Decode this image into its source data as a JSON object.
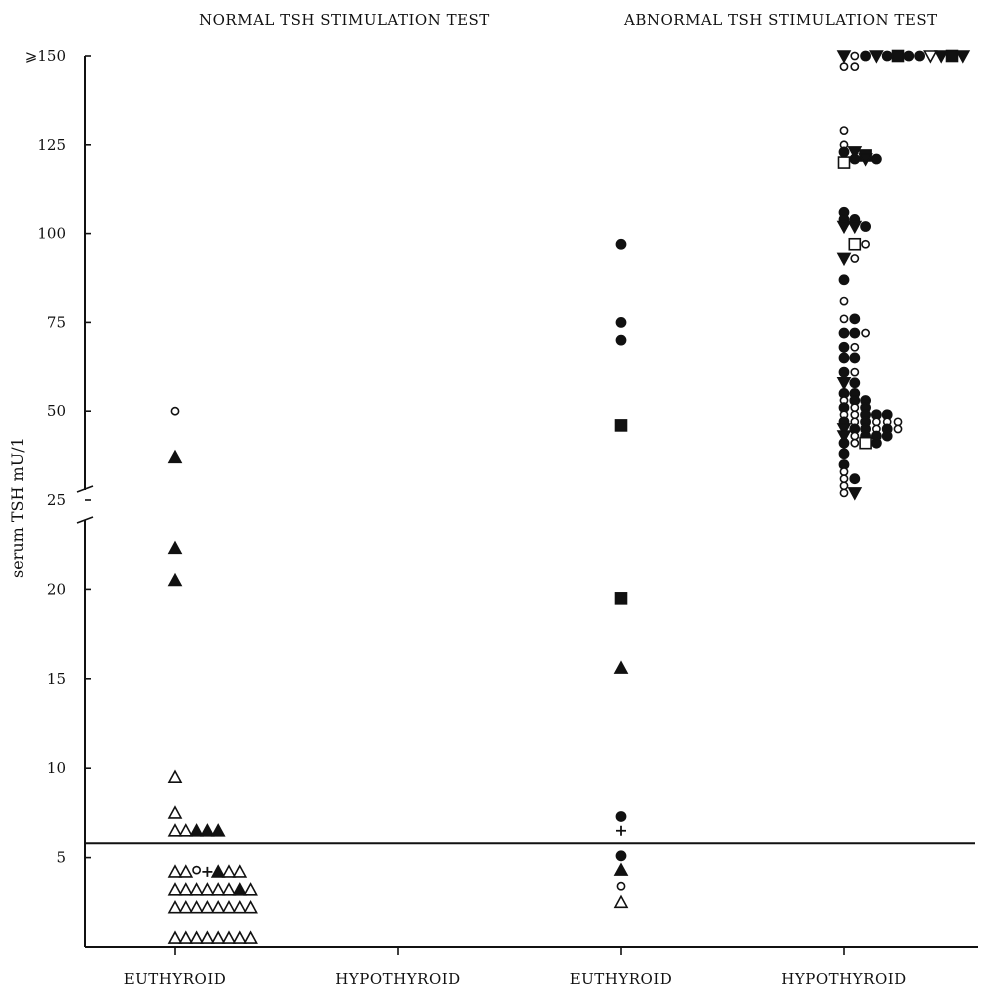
{
  "chart_data": {
    "type": "scatter",
    "panel_titles": [
      "NORMAL TSH STIMULATION TEST",
      "ABNORMAL TSH STIMULATION TEST"
    ],
    "categories": [
      "EUTHYROID",
      "HYPOTHYROID",
      "EUTHYROID",
      "HYPOTHYROID"
    ],
    "ylabel": "serum TSH mU/1",
    "yticks": [
      "5",
      "10",
      "15",
      "20",
      "25",
      "50",
      "75",
      "100",
      "125",
      "⩾150"
    ],
    "ylim_lower_segment": [
      0,
      25
    ],
    "ylim_upper_segment": [
      25,
      150
    ],
    "axis_break_at": 25,
    "reference_line_y": 5.8,
    "grid": false,
    "legend": "none",
    "marker_colors": {
      "filled": "#111111",
      "open": "#ffffff"
    },
    "series": [
      {
        "category": "EUTHYROID",
        "panel": "NORMAL TSH STIMULATION TEST",
        "points": [
          {
            "dx": 0,
            "y": 50,
            "m": "oc"
          },
          {
            "dx": 0,
            "y": 37,
            "m": "ft"
          },
          {
            "dx": 0,
            "y": 22.3,
            "m": "ft"
          },
          {
            "dx": 0,
            "y": 20.5,
            "m": "ft"
          },
          {
            "dx": 0,
            "y": 9.5,
            "m": "ot"
          },
          {
            "dx": 0,
            "y": 7.5,
            "m": "ot"
          },
          {
            "dx": 0,
            "y": 6.5,
            "m": "ot"
          },
          {
            "dx": 1,
            "y": 6.5,
            "m": "ot"
          },
          {
            "dx": 2,
            "y": 6.5,
            "m": "ft"
          },
          {
            "dx": 3,
            "y": 6.5,
            "m": "ft"
          },
          {
            "dx": 4,
            "y": 6.5,
            "m": "ft"
          },
          {
            "dx": 0,
            "y": 4.2,
            "m": "ot"
          },
          {
            "dx": 1,
            "y": 4.2,
            "m": "ot"
          },
          {
            "dx": 2,
            "y": 4.3,
            "m": "oc"
          },
          {
            "dx": 3,
            "y": 4.2,
            "m": "plus"
          },
          {
            "dx": 4,
            "y": 4.2,
            "m": "ft"
          },
          {
            "dx": 5,
            "y": 4.2,
            "m": "ot"
          },
          {
            "dx": 6,
            "y": 4.2,
            "m": "ot"
          },
          {
            "dx": 0,
            "y": 3.2,
            "m": "ot"
          },
          {
            "dx": 1,
            "y": 3.2,
            "m": "ot"
          },
          {
            "dx": 2,
            "y": 3.2,
            "m": "ot"
          },
          {
            "dx": 3,
            "y": 3.2,
            "m": "ot"
          },
          {
            "dx": 4,
            "y": 3.2,
            "m": "ot"
          },
          {
            "dx": 5,
            "y": 3.2,
            "m": "ot"
          },
          {
            "dx": 6,
            "y": 3.2,
            "m": "ft"
          },
          {
            "dx": 7,
            "y": 3.2,
            "m": "ot"
          },
          {
            "dx": 0,
            "y": 2.2,
            "m": "ot"
          },
          {
            "dx": 1,
            "y": 2.2,
            "m": "ot"
          },
          {
            "dx": 2,
            "y": 2.2,
            "m": "ot"
          },
          {
            "dx": 3,
            "y": 2.2,
            "m": "ot"
          },
          {
            "dx": 4,
            "y": 2.2,
            "m": "ot"
          },
          {
            "dx": 5,
            "y": 2.2,
            "m": "ot"
          },
          {
            "dx": 6,
            "y": 2.2,
            "m": "ot"
          },
          {
            "dx": 7,
            "y": 2.2,
            "m": "ot"
          },
          {
            "dx": 0,
            "y": 0.5,
            "m": "ot"
          },
          {
            "dx": 1,
            "y": 0.5,
            "m": "ot"
          },
          {
            "dx": 2,
            "y": 0.5,
            "m": "ot"
          },
          {
            "dx": 3,
            "y": 0.5,
            "m": "ot"
          },
          {
            "dx": 4,
            "y": 0.5,
            "m": "ot"
          },
          {
            "dx": 5,
            "y": 0.5,
            "m": "ot"
          },
          {
            "dx": 6,
            "y": 0.5,
            "m": "ot"
          },
          {
            "dx": 7,
            "y": 0.5,
            "m": "ot"
          }
        ]
      },
      {
        "category": "HYPOTHYROID",
        "panel": "NORMAL TSH STIMULATION TEST",
        "points": []
      },
      {
        "category": "EUTHYROID",
        "panel": "ABNORMAL TSH STIMULATION TEST",
        "points": [
          {
            "dx": 0,
            "y": 97,
            "m": "fc"
          },
          {
            "dx": 0,
            "y": 75,
            "m": "fc"
          },
          {
            "dx": 0,
            "y": 70,
            "m": "fc"
          },
          {
            "dx": 0,
            "y": 46,
            "m": "fs"
          },
          {
            "dx": 0,
            "y": 19.5,
            "m": "fs"
          },
          {
            "dx": 0,
            "y": 15.6,
            "m": "ft"
          },
          {
            "dx": 0,
            "y": 7.3,
            "m": "fc"
          },
          {
            "dx": 0,
            "y": 6.5,
            "m": "plus"
          },
          {
            "dx": 0,
            "y": 5.1,
            "m": "fc"
          },
          {
            "dx": 0,
            "y": 4.3,
            "m": "ft"
          },
          {
            "dx": 0,
            "y": 3.4,
            "m": "oc"
          },
          {
            "dx": 0,
            "y": 2.5,
            "m": "ot"
          }
        ]
      },
      {
        "category": "HYPOTHYROID",
        "panel": "ABNORMAL TSH STIMULATION TEST",
        "points": [
          {
            "dx": 0,
            "y": 150,
            "m": "fv"
          },
          {
            "dx": 1,
            "y": 150,
            "m": "oc"
          },
          {
            "dx": 2,
            "y": 150,
            "m": "fc"
          },
          {
            "dx": 3,
            "y": 150,
            "m": "fv"
          },
          {
            "dx": 4,
            "y": 150,
            "m": "fc"
          },
          {
            "dx": 5,
            "y": 150,
            "m": "fs"
          },
          {
            "dx": 6,
            "y": 150,
            "m": "fc"
          },
          {
            "dx": 7,
            "y": 150,
            "m": "fc"
          },
          {
            "dx": 8,
            "y": 150,
            "m": "ov"
          },
          {
            "dx": 9,
            "y": 150,
            "m": "fv"
          },
          {
            "dx": 10,
            "y": 150,
            "m": "fs"
          },
          {
            "dx": 11,
            "y": 150,
            "m": "fv"
          },
          {
            "dx": 0,
            "y": 147,
            "m": "oc"
          },
          {
            "dx": 1,
            "y": 147,
            "m": "oc"
          },
          {
            "dx": 0,
            "y": 129,
            "m": "oc"
          },
          {
            "dx": 0,
            "y": 125,
            "m": "oc"
          },
          {
            "dx": 0,
            "y": 123,
            "m": "fc"
          },
          {
            "dx": 1,
            "y": 123,
            "m": "fv"
          },
          {
            "dx": 2,
            "y": 122,
            "m": "fs"
          },
          {
            "dx": 0,
            "y": 120,
            "m": "os"
          },
          {
            "dx": 1,
            "y": 121,
            "m": "fc"
          },
          {
            "dx": 2,
            "y": 121,
            "m": "fv"
          },
          {
            "dx": 3,
            "y": 121,
            "m": "fc"
          },
          {
            "dx": 0,
            "y": 106,
            "m": "fc"
          },
          {
            "dx": 0,
            "y": 104,
            "m": "fc"
          },
          {
            "dx": 1,
            "y": 104,
            "m": "fc"
          },
          {
            "dx": 0,
            "y": 102,
            "m": "fv"
          },
          {
            "dx": 1,
            "y": 102,
            "m": "fv"
          },
          {
            "dx": 2,
            "y": 102,
            "m": "fc"
          },
          {
            "dx": 1,
            "y": 97,
            "m": "os"
          },
          {
            "dx": 2,
            "y": 97,
            "m": "oc"
          },
          {
            "dx": 0,
            "y": 93,
            "m": "fv"
          },
          {
            "dx": 1,
            "y": 93,
            "m": "oc"
          },
          {
            "dx": 0,
            "y": 87,
            "m": "fc"
          },
          {
            "dx": 0,
            "y": 81,
            "m": "oc"
          },
          {
            "dx": 0,
            "y": 76,
            "m": "oc"
          },
          {
            "dx": 1,
            "y": 76,
            "m": "fc"
          },
          {
            "dx": 0,
            "y": 72,
            "m": "fc"
          },
          {
            "dx": 1,
            "y": 72,
            "m": "fc"
          },
          {
            "dx": 2,
            "y": 72,
            "m": "oc"
          },
          {
            "dx": 0,
            "y": 68,
            "m": "fc"
          },
          {
            "dx": 1,
            "y": 68,
            "m": "oc"
          },
          {
            "dx": 0,
            "y": 65,
            "m": "fc"
          },
          {
            "dx": 1,
            "y": 65,
            "m": "fc"
          },
          {
            "dx": 0,
            "y": 61,
            "m": "fc"
          },
          {
            "dx": 1,
            "y": 61,
            "m": "oc"
          },
          {
            "dx": 0,
            "y": 58,
            "m": "fv"
          },
          {
            "dx": 1,
            "y": 58,
            "m": "fc"
          },
          {
            "dx": 0,
            "y": 55,
            "m": "fc"
          },
          {
            "dx": 1,
            "y": 55,
            "m": "fc"
          },
          {
            "dx": 0,
            "y": 53,
            "m": "oc"
          },
          {
            "dx": 1,
            "y": 53,
            "m": "fc"
          },
          {
            "dx": 2,
            "y": 53,
            "m": "fc"
          },
          {
            "dx": 0,
            "y": 51,
            "m": "fc"
          },
          {
            "dx": 1,
            "y": 51,
            "m": "oc"
          },
          {
            "dx": 2,
            "y": 51,
            "m": "fc"
          },
          {
            "dx": 0,
            "y": 49,
            "m": "oc"
          },
          {
            "dx": 1,
            "y": 49,
            "m": "oc"
          },
          {
            "dx": 2,
            "y": 49,
            "m": "fc"
          },
          {
            "dx": 3,
            "y": 49,
            "m": "fc"
          },
          {
            "dx": 4,
            "y": 49,
            "m": "fc"
          },
          {
            "dx": 0,
            "y": 47,
            "m": "fc"
          },
          {
            "dx": 1,
            "y": 47,
            "m": "oc"
          },
          {
            "dx": 2,
            "y": 47,
            "m": "fc"
          },
          {
            "dx": 3,
            "y": 47,
            "m": "oc"
          },
          {
            "dx": 4,
            "y": 47,
            "m": "oc"
          },
          {
            "dx": 5,
            "y": 47,
            "m": "oc"
          },
          {
            "dx": 0,
            "y": 45,
            "m": "fv"
          },
          {
            "dx": 1,
            "y": 45,
            "m": "fc"
          },
          {
            "dx": 2,
            "y": 45,
            "m": "fc"
          },
          {
            "dx": 3,
            "y": 45,
            "m": "oc"
          },
          {
            "dx": 4,
            "y": 45,
            "m": "fc"
          },
          {
            "dx": 5,
            "y": 45,
            "m": "oc"
          },
          {
            "dx": 0,
            "y": 43,
            "m": "fv"
          },
          {
            "dx": 1,
            "y": 43,
            "m": "oc"
          },
          {
            "dx": 2,
            "y": 43,
            "m": "fc"
          },
          {
            "dx": 3,
            "y": 43,
            "m": "fc"
          },
          {
            "dx": 4,
            "y": 43,
            "m": "fc"
          },
          {
            "dx": 0,
            "y": 41,
            "m": "fc"
          },
          {
            "dx": 1,
            "y": 41,
            "m": "oc"
          },
          {
            "dx": 2,
            "y": 41,
            "m": "os"
          },
          {
            "dx": 3,
            "y": 41,
            "m": "fc"
          },
          {
            "dx": 0,
            "y": 38,
            "m": "fc"
          },
          {
            "dx": 0,
            "y": 35,
            "m": "fc"
          },
          {
            "dx": 0,
            "y": 33,
            "m": "oc"
          },
          {
            "dx": 0,
            "y": 31,
            "m": "oc"
          },
          {
            "dx": 1,
            "y": 31,
            "m": "fc"
          },
          {
            "dx": 0,
            "y": 29,
            "m": "oc"
          },
          {
            "dx": 0,
            "y": 27,
            "m": "oc"
          },
          {
            "dx": 1,
            "y": 27,
            "m": "fv"
          }
        ]
      }
    ]
  }
}
